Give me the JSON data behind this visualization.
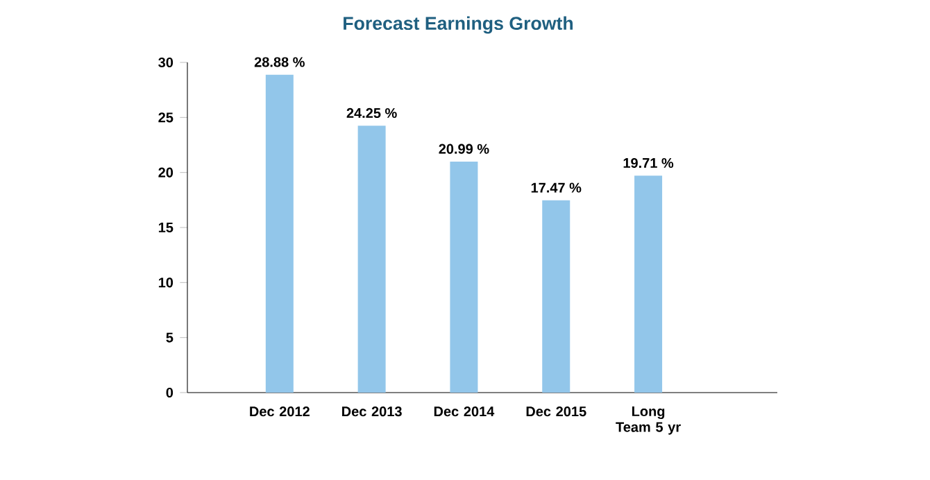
{
  "chart_data": {
    "type": "bar",
    "title": "Forecast Earnings Growth",
    "categories": [
      "Dec 2012",
      "Dec 2013",
      "Dec 2014",
      "Dec 2015",
      "Long Team 5 yr"
    ],
    "values": [
      28.88,
      24.25,
      20.99,
      17.47,
      19.71
    ],
    "value_labels": [
      "28.88 %",
      "24.25 %",
      "20.99 %",
      "17.47 %",
      "19.71 %"
    ],
    "color": "#92c6ea",
    "ylim": [
      0,
      30
    ],
    "yticks": [
      0,
      5,
      10,
      15,
      20,
      25,
      30
    ],
    "grid": false
  }
}
